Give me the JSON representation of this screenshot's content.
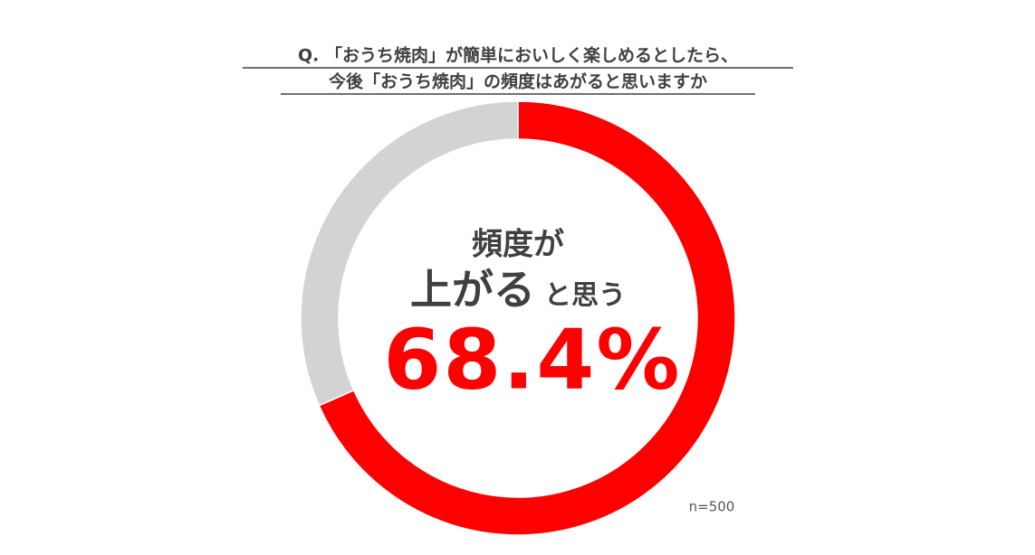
{
  "chart_data": {
    "type": "donut",
    "title_lines": [
      "Q. 「おうち焼肉」が簡単においしく楽しめるとしたら、",
      "今後「おうち焼肉」の頻度はあがると思いますか"
    ],
    "center_text": [
      "頻度が",
      "上がる",
      "と思う"
    ],
    "categories": [
      null,
      null
    ],
    "values": [
      68.4,
      31.6
    ],
    "value_labels": [
      "68.4%",
      null
    ],
    "colors": [
      "#ff0000",
      "#d3d3d3"
    ],
    "note": "n=500"
  }
}
